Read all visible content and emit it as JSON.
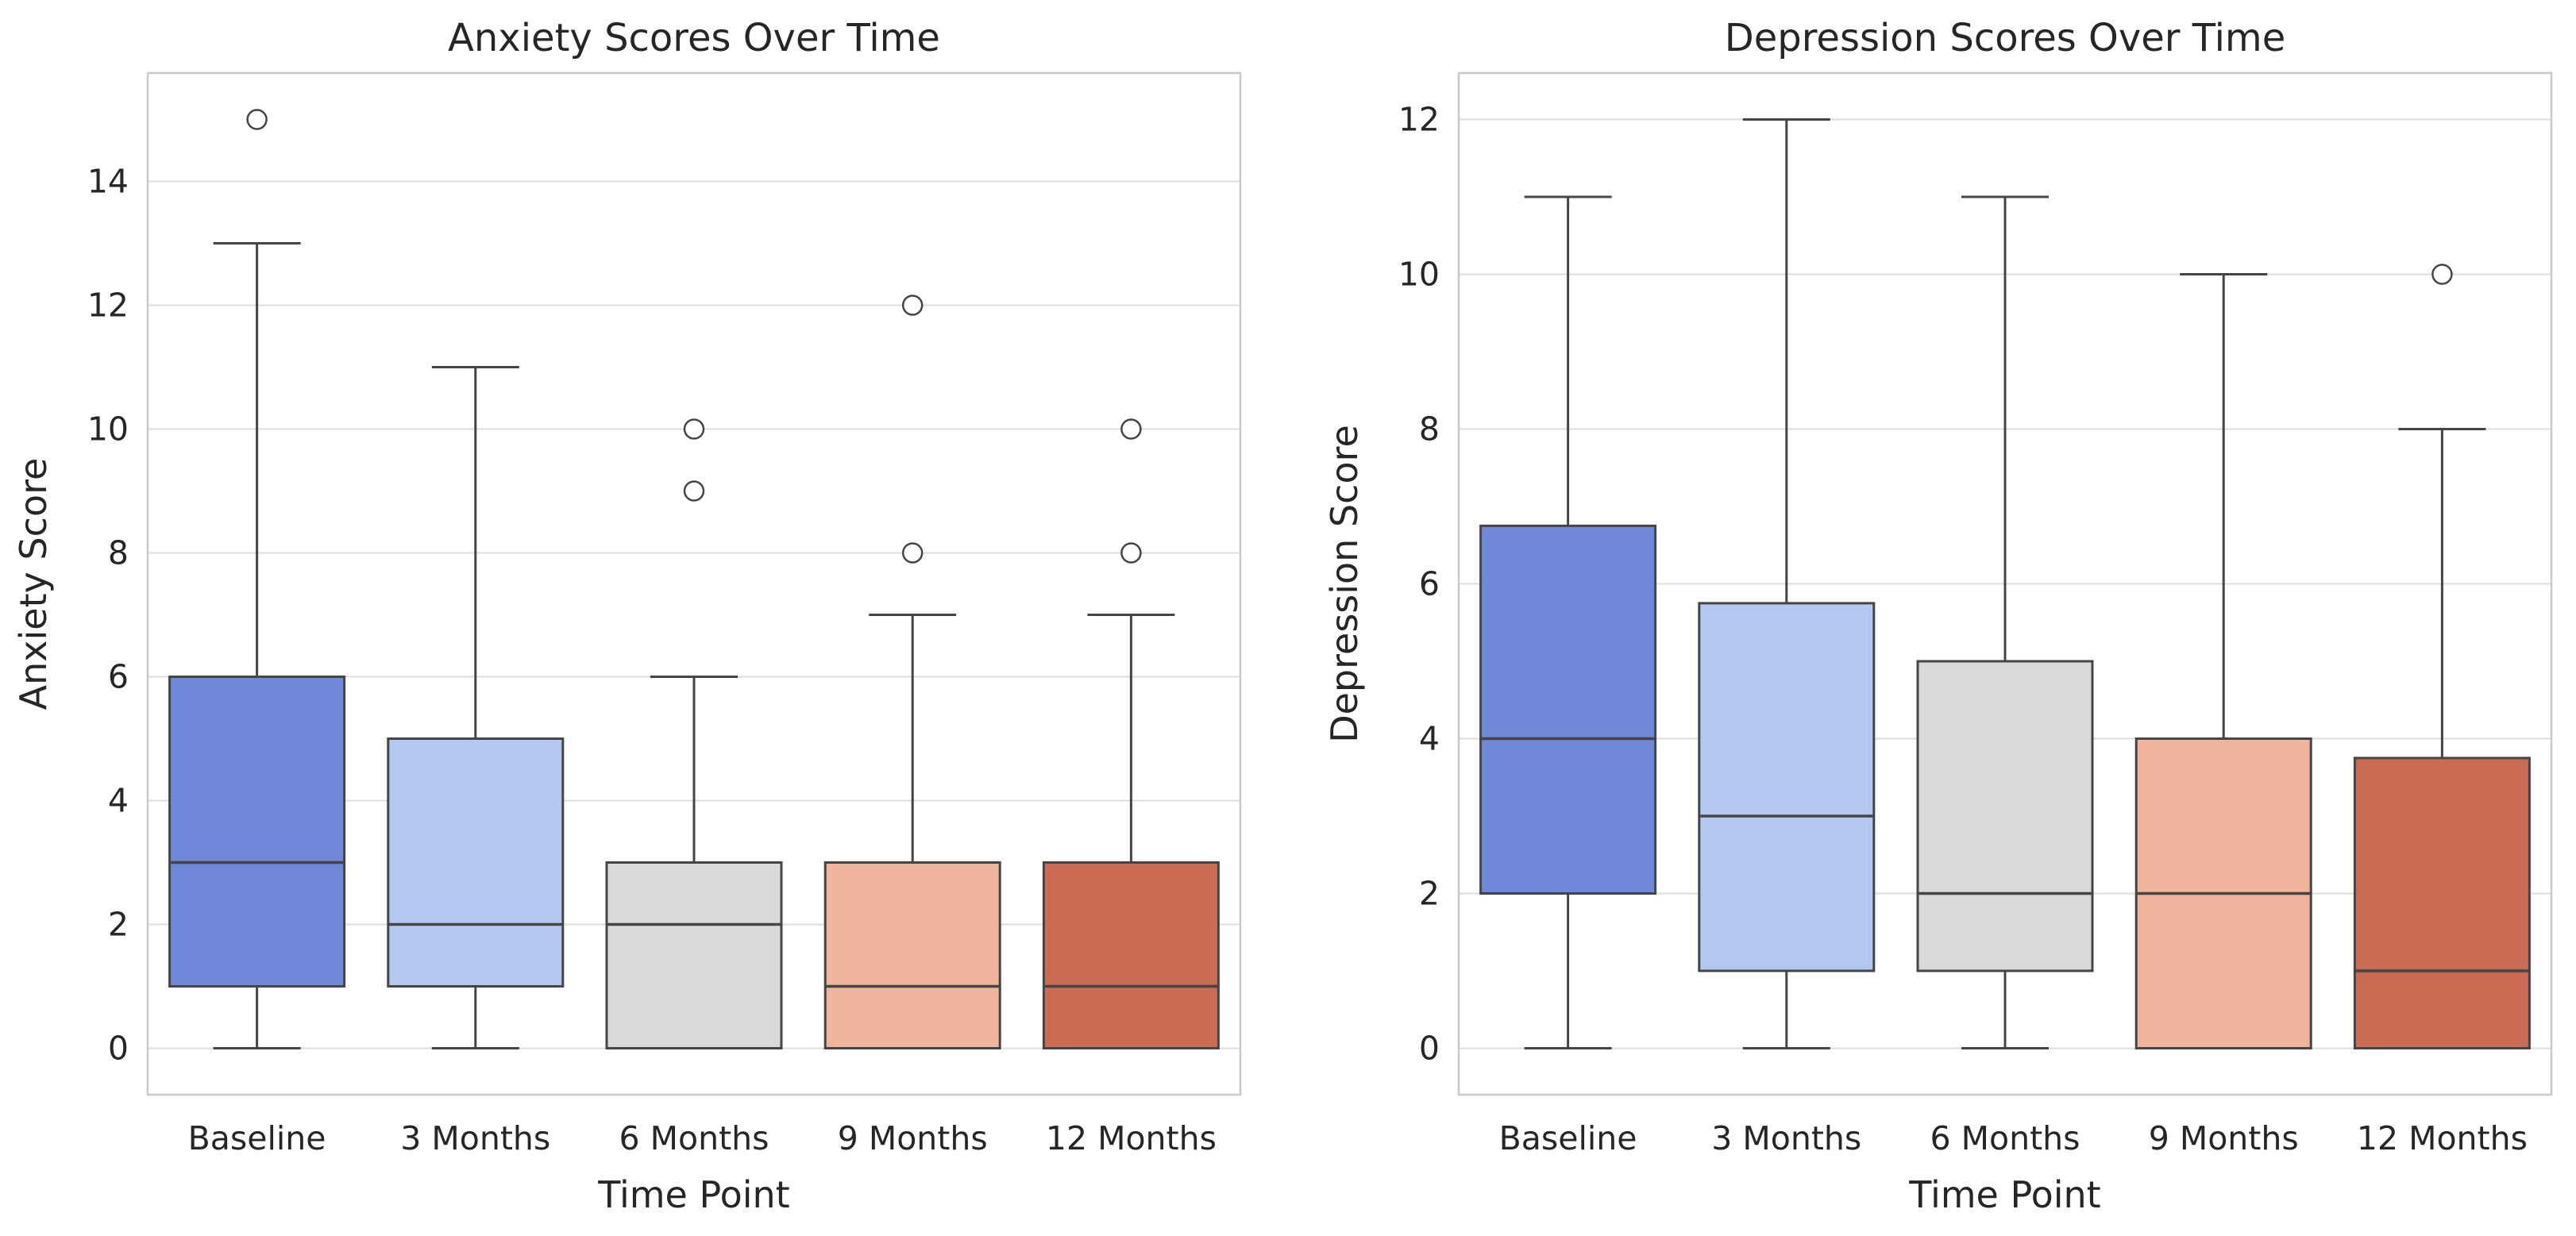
{
  "figure": {
    "background": "#ffffff",
    "text_color": "#262626",
    "grid_color": "#dcdcdc",
    "spine_color": "#c9c9c9",
    "box_edge_color": "#454545"
  },
  "chart_data": [
    {
      "type": "boxplot",
      "title": "Anxiety Scores Over Time",
      "xlabel": "Time Point",
      "ylabel": "Anxiety Score",
      "categories": [
        "Baseline",
        "3 Months",
        "6 Months",
        "9 Months",
        "12 Months"
      ],
      "yticks": [
        0,
        2,
        4,
        6,
        8,
        10,
        12,
        14
      ],
      "ylim": [
        -0.75,
        15.75
      ],
      "grid": true,
      "legend": "none",
      "boxes": [
        {
          "category": "Baseline",
          "whisker_low": 0,
          "q1": 1,
          "median": 3,
          "q3": 6,
          "whisker_high": 13,
          "outliers": [
            15
          ],
          "color": "#6f88d8"
        },
        {
          "category": "3 Months",
          "whisker_low": 0,
          "q1": 1,
          "median": 2,
          "q3": 5,
          "whisker_high": 11,
          "outliers": [],
          "color": "#b3c8f0"
        },
        {
          "category": "6 Months",
          "whisker_low": 0,
          "q1": 0,
          "median": 2,
          "q3": 3,
          "whisker_high": 6,
          "outliers": [
            9,
            10
          ],
          "color": "#d9d9d8"
        },
        {
          "category": "9 Months",
          "whisker_low": 0,
          "q1": 0,
          "median": 1,
          "q3": 3,
          "whisker_high": 7,
          "outliers": [
            8,
            12
          ],
          "color": "#eeb59c"
        },
        {
          "category": "12 Months",
          "whisker_low": 0,
          "q1": 0,
          "median": 1,
          "q3": 3,
          "whisker_high": 7,
          "outliers": [
            8,
            10
          ],
          "color": "#ca6b54"
        }
      ]
    },
    {
      "type": "boxplot",
      "title": "Depression Scores Over Time",
      "xlabel": "Time Point",
      "ylabel": "Depression Score",
      "categories": [
        "Baseline",
        "3 Months",
        "6 Months",
        "9 Months",
        "12 Months"
      ],
      "yticks": [
        0,
        2,
        4,
        6,
        8,
        10,
        12
      ],
      "ylim": [
        -0.6,
        12.6
      ],
      "grid": true,
      "legend": "none",
      "boxes": [
        {
          "category": "Baseline",
          "whisker_low": 0,
          "q1": 2,
          "median": 4,
          "q3": 6.75,
          "whisker_high": 11,
          "outliers": [],
          "color": "#6f88d8"
        },
        {
          "category": "3 Months",
          "whisker_low": 0,
          "q1": 1,
          "median": 3,
          "q3": 5.75,
          "whisker_high": 12,
          "outliers": [],
          "color": "#b3c8f0"
        },
        {
          "category": "6 Months",
          "whisker_low": 0,
          "q1": 1,
          "median": 2,
          "q3": 5,
          "whisker_high": 11,
          "outliers": [],
          "color": "#d9d9d8"
        },
        {
          "category": "9 Months",
          "whisker_low": 0,
          "q1": 0,
          "median": 2,
          "q3": 4,
          "whisker_high": 10,
          "outliers": [],
          "color": "#eeb59c"
        },
        {
          "category": "12 Months",
          "whisker_low": 0,
          "q1": 0,
          "median": 1,
          "q3": 3.75,
          "whisker_high": 8,
          "outliers": [
            10
          ],
          "color": "#ca6b54"
        }
      ]
    }
  ]
}
